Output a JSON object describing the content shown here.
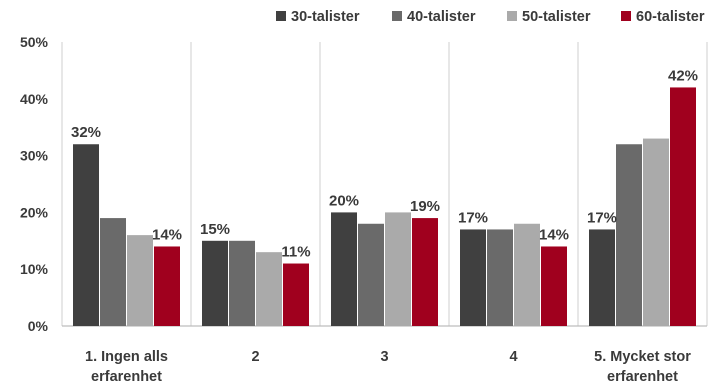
{
  "chart_data": {
    "type": "bar",
    "categories": [
      "1. Ingen alls erfarenhet",
      "2",
      "3",
      "4",
      "5. Mycket stor erfarenhet"
    ],
    "category_lines": [
      [
        "1. Ingen alls",
        "erfarenhet"
      ],
      [
        "2"
      ],
      [
        "3"
      ],
      [
        "4"
      ],
      [
        "5. Mycket stor",
        "erfarenhet"
      ]
    ],
    "series": [
      {
        "name": "30-talister",
        "color": "#404040",
        "values": [
          32,
          15,
          20,
          17,
          17
        ]
      },
      {
        "name": "40-talister",
        "color": "#6a6a6a",
        "values": [
          19,
          15,
          18,
          17,
          32
        ]
      },
      {
        "name": "50-talister",
        "color": "#aaaaaa",
        "values": [
          16,
          13,
          20,
          18,
          33
        ]
      },
      {
        "name": "60-talister",
        "color": "#a0001e",
        "values": [
          14,
          11,
          19,
          14,
          42
        ]
      }
    ],
    "data_labels": [
      {
        "series": 0,
        "category": 0,
        "text": "32%"
      },
      {
        "series": 3,
        "category": 0,
        "text": "14%"
      },
      {
        "series": 0,
        "category": 1,
        "text": "15%"
      },
      {
        "series": 3,
        "category": 1,
        "text": "11%"
      },
      {
        "series": 0,
        "category": 2,
        "text": "20%"
      },
      {
        "series": 3,
        "category": 2,
        "text": "19%"
      },
      {
        "series": 0,
        "category": 3,
        "text": "17%"
      },
      {
        "series": 3,
        "category": 3,
        "text": "14%"
      },
      {
        "series": 0,
        "category": 4,
        "text": "17%"
      },
      {
        "series": 3,
        "category": 4,
        "text": "42%"
      }
    ],
    "y_ticks": [
      "0%",
      "10%",
      "20%",
      "30%",
      "40%",
      "50%"
    ],
    "ylim": [
      0,
      50
    ],
    "title": "",
    "xlabel": "",
    "ylabel": "",
    "grid": "vertical separators between categories",
    "legend_position": "top-right"
  }
}
